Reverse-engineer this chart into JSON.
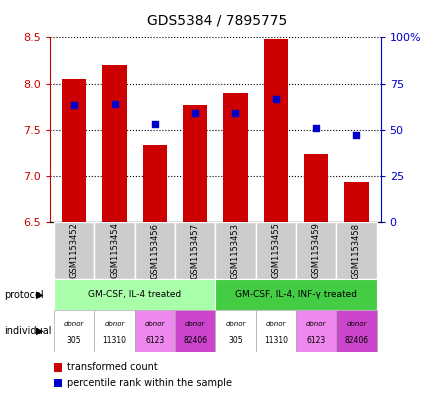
{
  "title": "GDS5384 / 7895775",
  "samples": [
    "GSM1153452",
    "GSM1153454",
    "GSM1153456",
    "GSM1153457",
    "GSM1153453",
    "GSM1153455",
    "GSM1153459",
    "GSM1153458"
  ],
  "bar_values": [
    8.05,
    8.2,
    7.33,
    7.77,
    7.9,
    8.48,
    7.24,
    6.93
  ],
  "dot_values": [
    7.77,
    7.78,
    7.56,
    7.68,
    7.68,
    7.83,
    7.52,
    7.44
  ],
  "ylim": [
    6.5,
    8.5
  ],
  "yticks": [
    6.5,
    7.0,
    7.5,
    8.0,
    8.5
  ],
  "right_yticks": [
    0,
    25,
    50,
    75,
    100
  ],
  "right_ytick_labels": [
    "0",
    "25",
    "50",
    "75",
    "100%"
  ],
  "bar_color": "#cc0000",
  "dot_color": "#0000cc",
  "bar_bottom": 6.5,
  "protocol_groups": [
    {
      "label": "GM-CSF, IL-4 treated",
      "start": 0,
      "end": 4,
      "color": "#aaffaa"
    },
    {
      "label": "GM-CSF, IL-4, INF-γ treated",
      "start": 4,
      "end": 8,
      "color": "#44cc44"
    }
  ],
  "donor_colors": [
    "#ffffff",
    "#ffffff",
    "#ee88ee",
    "#cc44cc",
    "#ffffff",
    "#ffffff",
    "#ee88ee",
    "#cc44cc"
  ],
  "donor_labels_top": [
    "donor",
    "donor",
    "donor",
    "donor",
    "donor",
    "donor",
    "donor",
    "donor"
  ],
  "donor_labels_bot": [
    "305",
    "11310",
    "6123",
    "82406",
    "305",
    "11310",
    "6123",
    "82406"
  ],
  "legend_items": [
    {
      "color": "#cc0000",
      "label": "transformed count"
    },
    {
      "color": "#0000cc",
      "label": "percentile rank within the sample"
    }
  ],
  "sample_bg_color": "#cccccc",
  "yaxis_color": "#cc0000",
  "right_yaxis_color": "#0000cc",
  "title_fontsize": 10
}
